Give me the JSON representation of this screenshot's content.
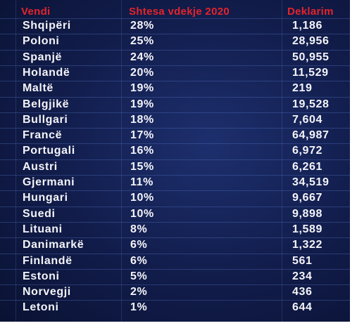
{
  "table": {
    "headers": [
      "Vendi",
      "Shtesa vdekje 2020",
      "Deklarim"
    ],
    "rows": [
      [
        "Shqipëri",
        "28%",
        "1,186"
      ],
      [
        "Poloni",
        "25%",
        "28,956"
      ],
      [
        "Spanjë",
        "24%",
        "50,955"
      ],
      [
        "Holandë",
        "20%",
        "11,529"
      ],
      [
        "Maltë",
        "19%",
        "219"
      ],
      [
        "Belgjikë",
        "19%",
        "19,528"
      ],
      [
        "Bullgari",
        "18%",
        "7,604"
      ],
      [
        "Francë",
        "17%",
        "64,987"
      ],
      [
        "Portugali",
        "16%",
        "6,972"
      ],
      [
        "Austri",
        "15%",
        "6,261"
      ],
      [
        "Gjermani",
        "11%",
        "34,519"
      ],
      [
        "Hungari",
        "10%",
        "9,667"
      ],
      [
        "Suedi",
        "10%",
        "9,898"
      ],
      [
        "Lituani",
        "8%",
        "1,589"
      ],
      [
        "Danimarkë",
        "6%",
        "1,322"
      ],
      [
        "Finlandë",
        "6%",
        "561"
      ],
      [
        "Estoni",
        "5%",
        "234"
      ],
      [
        "Norvegji",
        "2%",
        "436"
      ],
      [
        "Letoni",
        "1%",
        "644"
      ]
    ]
  }
}
